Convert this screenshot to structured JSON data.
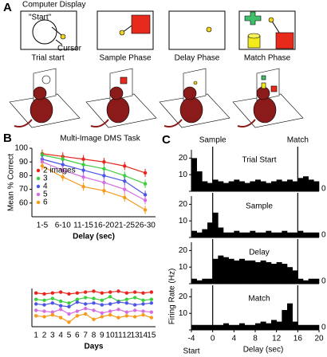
{
  "panel_a": {
    "letter": "A",
    "display_label": "Computer Display",
    "start_label": "\"Start\"",
    "cursor_label": "Cursor",
    "phases": [
      "Trial start",
      "Sample Phase",
      "Delay Phase",
      "Match Phase"
    ]
  },
  "chart_data": [
    {
      "type": "line",
      "panel": "B",
      "title": "Multi-Image DMS Task",
      "ylabel": "Mean % Correct",
      "xlabel": "Delay (sec)",
      "categories": [
        "1-5",
        "6-10",
        "11-15",
        "16-20",
        "21-25",
        "26-30"
      ],
      "ylim": [
        50,
        100
      ],
      "yticks": [
        60,
        70,
        80,
        90,
        100
      ],
      "legend": "lower left",
      "series": [
        {
          "name": "2 images",
          "color": "#e8241c",
          "values": [
            96,
            94,
            92,
            90,
            87,
            82
          ],
          "errors": [
            3,
            3,
            3,
            3,
            3,
            3
          ]
        },
        {
          "name": "3",
          "color": "#3ecf3e",
          "values": [
            95,
            92,
            88,
            85,
            80,
            74
          ],
          "errors": [
            3,
            3,
            3,
            3,
            3,
            3
          ]
        },
        {
          "name": "4",
          "color": "#4b55e6",
          "values": [
            92,
            88,
            84,
            80,
            76,
            66
          ],
          "errors": [
            3,
            3,
            3,
            3,
            3,
            3
          ]
        },
        {
          "name": "5",
          "color": "#d46fe0",
          "values": [
            90,
            84,
            79,
            75,
            70,
            62
          ],
          "errors": [
            3,
            3,
            3,
            3,
            3,
            3
          ]
        },
        {
          "name": "6",
          "color": "#f59a1c",
          "values": [
            87,
            79,
            72,
            69,
            64,
            55
          ],
          "errors": [
            3,
            3,
            3,
            3,
            3,
            3
          ]
        }
      ]
    },
    {
      "type": "line",
      "xlabel": "Days",
      "categories": [
        "1",
        "2",
        "3",
        "4",
        "5",
        "6",
        "7",
        "8",
        "9",
        "10",
        "11",
        "12",
        "13",
        "14",
        "15"
      ],
      "ylim": [
        60,
        102
      ],
      "series": [
        {
          "color": "#e8241c",
          "values": [
            97,
            96,
            97,
            98,
            96,
            97,
            98,
            99,
            97,
            98,
            99,
            97,
            98,
            97,
            98
          ]
        },
        {
          "color": "#3ecf3e",
          "values": [
            90,
            89,
            91,
            88,
            86,
            90,
            92,
            91,
            89,
            93,
            88,
            90,
            92,
            89,
            90
          ]
        },
        {
          "color": "#4b55e6",
          "values": [
            85,
            84,
            86,
            83,
            82,
            87,
            85,
            86,
            84,
            85,
            87,
            86,
            84,
            85,
            86
          ]
        },
        {
          "color": "#d46fe0",
          "values": [
            78,
            77,
            76,
            79,
            74,
            77,
            80,
            78,
            75,
            77,
            79,
            76,
            78,
            77,
            76
          ]
        },
        {
          "color": "#f59a1c",
          "values": [
            72,
            71,
            73,
            70,
            65,
            72,
            74,
            68,
            71,
            73,
            70,
            72,
            71,
            73,
            70
          ]
        }
      ]
    },
    {
      "type": "histogram",
      "panel": "C",
      "title": "Trial Start",
      "events": [
        {
          "value": 0,
          "label": "Sample"
        },
        {
          "value": 16,
          "label": "Match"
        }
      ],
      "bins": [
        -4,
        -3,
        -2,
        -1,
        0,
        1,
        2,
        3,
        4,
        5,
        6,
        7,
        8,
        9,
        10,
        11,
        12,
        13,
        14,
        15,
        16,
        17,
        18,
        19,
        20
      ],
      "counts": [
        20,
        12,
        6,
        5,
        7,
        6,
        5,
        6,
        7,
        6,
        5,
        6,
        7,
        6,
        5,
        6,
        7,
        6,
        7,
        6,
        8,
        9,
        7,
        6
      ],
      "xlim": [
        -4,
        20
      ],
      "ylim": [
        0,
        25
      ],
      "yticks": [
        0,
        10,
        20
      ]
    },
    {
      "type": "histogram",
      "title": "Sample",
      "bins": [
        -4,
        -3,
        -2,
        -1,
        0,
        1,
        2,
        3,
        4,
        5,
        6,
        7,
        8,
        9,
        10,
        11,
        12,
        13,
        14,
        15,
        16,
        17,
        18,
        19,
        20
      ],
      "counts": [
        4,
        3,
        5,
        9,
        15,
        6,
        3,
        3,
        4,
        3,
        3,
        4,
        3,
        3,
        4,
        3,
        3,
        4,
        3,
        3,
        4,
        3,
        3,
        3
      ],
      "xlim": [
        -4,
        20
      ],
      "ylim": [
        0,
        25
      ],
      "yticks": [
        0,
        10,
        20
      ]
    },
    {
      "type": "histogram",
      "title": "Delay",
      "bins": [
        -4,
        -3,
        -2,
        -1,
        0,
        1,
        2,
        3,
        4,
        5,
        6,
        7,
        8,
        9,
        10,
        11,
        12,
        13,
        14,
        15,
        16,
        17,
        18,
        19,
        20
      ],
      "counts": [
        3,
        2,
        3,
        3,
        15,
        17,
        16,
        15,
        14,
        15,
        14,
        14,
        13,
        14,
        13,
        12,
        13,
        12,
        10,
        8,
        3,
        2,
        3,
        3
      ],
      "xlim": [
        -4,
        20
      ],
      "ylim": [
        0,
        25
      ],
      "yticks": [
        0,
        10,
        20
      ]
    },
    {
      "type": "histogram",
      "title": "Match",
      "xlabel": "Delay (sec)",
      "ylabel": "Firing Rate (Hz)",
      "start_label": "Start",
      "bins": [
        -4,
        -3,
        -2,
        -1,
        0,
        1,
        2,
        3,
        4,
        5,
        6,
        7,
        8,
        9,
        10,
        11,
        12,
        13,
        14,
        15,
        16,
        17,
        18,
        19,
        20
      ],
      "counts": [
        3,
        3,
        3,
        3,
        3,
        3,
        4,
        3,
        3,
        4,
        3,
        3,
        4,
        5,
        4,
        6,
        5,
        12,
        16,
        5,
        3,
        3,
        3,
        3
      ],
      "xlim": [
        -4,
        20
      ],
      "ylim": [
        0,
        25
      ],
      "yticks": [
        0,
        10,
        20
      ],
      "xticks": [
        -4,
        0,
        4,
        8,
        12,
        16,
        20
      ]
    }
  ]
}
